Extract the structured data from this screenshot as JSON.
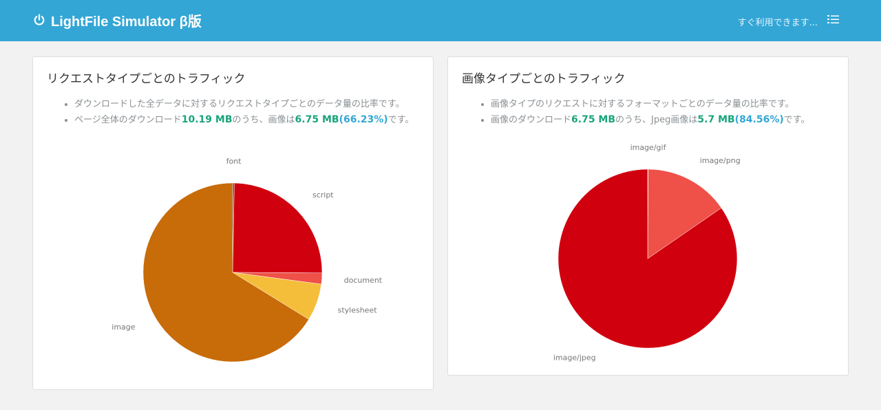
{
  "header": {
    "app_title": "LightFile Simulator β版",
    "status_text": "すぐ利用できます...",
    "logo_icon": "power-icon",
    "menu_icon": "list-icon",
    "bg_color": "#33a6d6"
  },
  "cards": [
    {
      "title": "リクエストタイプごとのトラフィック",
      "bullet1": "ダウンロードした全データに対するリクエストタイプごとのデータ量の比率です。",
      "bullet2": {
        "prefix": "ページ全体のダウンロード",
        "total": "10.19 MB",
        "middle": "のうち、画像は",
        "image_size": "6.75 MB",
        "percent": "(66.23%)",
        "suffix": "です。"
      }
    },
    {
      "title": "画像タイプごとのトラフィック",
      "bullet1": "画像タイプのリクエストに対するフォーマットごとのデータ量の比率です。",
      "bullet2": {
        "prefix": "画像のダウンロード",
        "total": "6.75 MB",
        "middle": "のうち、Jpeg画像は",
        "image_size": "5.7 MB",
        "percent": "(84.56%)",
        "suffix": "です。"
      }
    }
  ],
  "chart_data": [
    {
      "type": "pie",
      "title": "",
      "categories": [
        "font",
        "script",
        "document",
        "stylesheet",
        "image"
      ],
      "values": [
        0.3,
        24.8,
        2.0,
        6.7,
        66.2
      ],
      "colors": [
        "#555555",
        "#d0000f",
        "#ef5047",
        "#f4be3b",
        "#c86b09"
      ]
    },
    {
      "type": "pie",
      "title": "",
      "categories": [
        "image/gif",
        "image/png",
        "image/jpeg"
      ],
      "values": [
        0.1,
        15.3,
        84.6
      ],
      "colors": [
        "#ef5047",
        "#ef5047",
        "#d0000f"
      ]
    }
  ]
}
